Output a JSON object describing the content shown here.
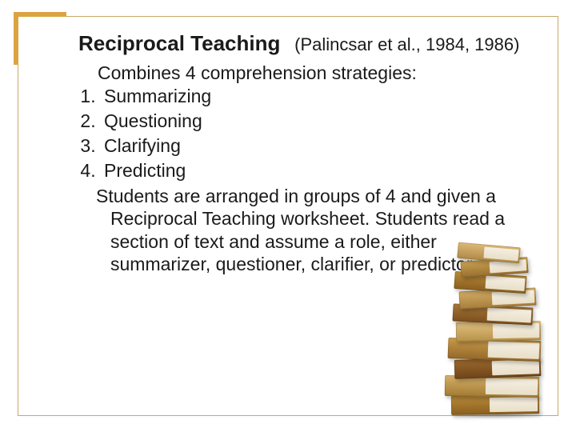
{
  "slide": {
    "title_main": "Reciprocal Teaching",
    "title_cite": "(Palincsar et al., 1984, 1986)",
    "intro": "Combines 4 comprehension strategies:",
    "strategies": [
      "Summarizing",
      "Questioning",
      "Clarifying",
      "Predicting"
    ],
    "body": "Students are arranged in groups of 4 and given a Reciprocal Teaching worksheet.  Students read a section of text and assume a role, either summarizer, questioner, clarifier, or predictor."
  },
  "style": {
    "background_color": "#ffffff",
    "frame_border_color": "#c9a96a",
    "corner_accent_color": "#d9a441",
    "text_color": "#1a1a1a",
    "title_fontsize_pt": 20,
    "cite_fontsize_pt": 17,
    "body_fontsize_pt": 17,
    "font_family": "Century Gothic",
    "book_colors": [
      "#b88a3a",
      "#d4b06a",
      "#9c6a2f",
      "#c79a4a",
      "#e0c080",
      "#a8783a",
      "#d2ac66",
      "#b88a3a",
      "#caa050",
      "#ddb878"
    ]
  }
}
